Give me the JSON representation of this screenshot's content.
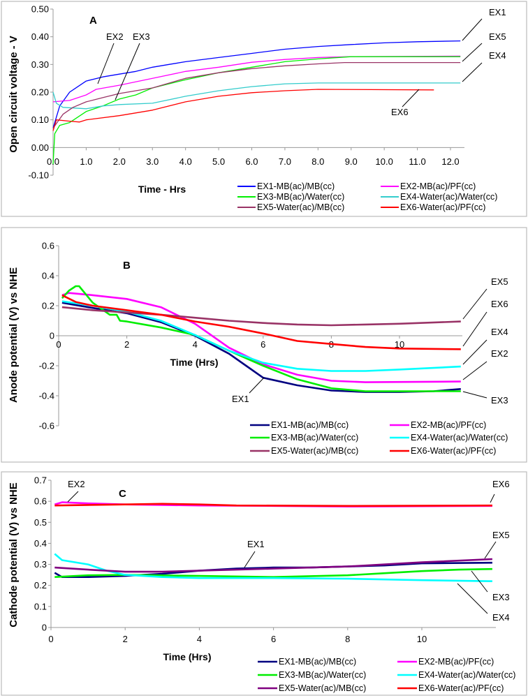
{
  "chart_data": [
    {
      "type": "line",
      "panel": "A",
      "title": "A",
      "xlabel": "Time - Hrs",
      "ylabel": "Open circuit voltage - V",
      "xlim": [
        0,
        12.4
      ],
      "ylim": [
        -0.1,
        0.5
      ],
      "xticks": [
        "0.0",
        "1.0",
        "2.0",
        "3.0",
        "4.0",
        "5.0",
        "6.0",
        "7.0",
        "8.0",
        "9.0",
        "10.0",
        "11.0",
        "12.0"
      ],
      "yticks": [
        "-0.10",
        "0.00",
        "0.10",
        "0.20",
        "0.30",
        "0.40",
        "0.50"
      ],
      "grid": false,
      "legend_placement": "bottom-right",
      "series": [
        {
          "name": "EX1-MB(ac)/MB(cc)",
          "color": "#0000ff",
          "points": [
            [
              0,
              0.07
            ],
            [
              0.2,
              0.15
            ],
            [
              0.5,
              0.2
            ],
            [
              1,
              0.24
            ],
            [
              1.5,
              0.255
            ],
            [
              2,
              0.265
            ],
            [
              2.5,
              0.275
            ],
            [
              3,
              0.29
            ],
            [
              3.5,
              0.3
            ],
            [
              4,
              0.31
            ],
            [
              5,
              0.325
            ],
            [
              6,
              0.34
            ],
            [
              7,
              0.355
            ],
            [
              8,
              0.365
            ],
            [
              9,
              0.372
            ],
            [
              10,
              0.378
            ],
            [
              11,
              0.382
            ],
            [
              12.3,
              0.385
            ]
          ]
        },
        {
          "name": "EX2-MB(ac)/PF(cc)",
          "color": "#ff00ff",
          "points": [
            [
              0,
              0.165
            ],
            [
              0.5,
              0.17
            ],
            [
              1,
              0.19
            ],
            [
              1.3,
              0.21
            ],
            [
              2,
              0.225
            ],
            [
              3,
              0.25
            ],
            [
              4,
              0.275
            ],
            [
              5,
              0.29
            ],
            [
              6,
              0.308
            ],
            [
              7,
              0.318
            ],
            [
              8,
              0.325
            ],
            [
              9,
              0.328
            ],
            [
              12.3,
              0.33
            ]
          ]
        },
        {
          "name": "EX3-MB(ac)/Water(cc)",
          "color": "#00ee00",
          "points": [
            [
              0,
              -0.06
            ],
            [
              0.05,
              0.05
            ],
            [
              0.2,
              0.08
            ],
            [
              0.5,
              0.09
            ],
            [
              1,
              0.13
            ],
            [
              1.5,
              0.15
            ],
            [
              2,
              0.175
            ],
            [
              2.5,
              0.19
            ],
            [
              3,
              0.215
            ],
            [
              4,
              0.245
            ],
            [
              5,
              0.27
            ],
            [
              6,
              0.29
            ],
            [
              7,
              0.31
            ],
            [
              8,
              0.32
            ],
            [
              9,
              0.328
            ],
            [
              12.3,
              0.328
            ]
          ]
        },
        {
          "name": "EX4-Water(ac)/Water(cc)",
          "color": "#33cccc",
          "points": [
            [
              0,
              0.2
            ],
            [
              0.1,
              0.16
            ],
            [
              0.3,
              0.145
            ],
            [
              1,
              0.14
            ],
            [
              1.5,
              0.15
            ],
            [
              2,
              0.155
            ],
            [
              3,
              0.16
            ],
            [
              4,
              0.185
            ],
            [
              5,
              0.205
            ],
            [
              6,
              0.22
            ],
            [
              7,
              0.23
            ],
            [
              8,
              0.233
            ],
            [
              12.3,
              0.233
            ]
          ]
        },
        {
          "name": "EX5-Water(ac)/MB(cc)",
          "color": "#993366",
          "points": [
            [
              0,
              0.07
            ],
            [
              0.3,
              0.12
            ],
            [
              0.6,
              0.145
            ],
            [
              1,
              0.165
            ],
            [
              1.5,
              0.18
            ],
            [
              2,
              0.195
            ],
            [
              3,
              0.215
            ],
            [
              4,
              0.25
            ],
            [
              5,
              0.27
            ],
            [
              6,
              0.285
            ],
            [
              7,
              0.295
            ],
            [
              8,
              0.302
            ],
            [
              8.8,
              0.307
            ],
            [
              12.3,
              0.307
            ]
          ]
        },
        {
          "name": "EX6-Water(ac)/PF(cc)",
          "color": "#ff0000",
          "points": [
            [
              0,
              0.06
            ],
            [
              0.1,
              0.1
            ],
            [
              0.5,
              0.095
            ],
            [
              0.8,
              0.092
            ],
            [
              1,
              0.1
            ],
            [
              2,
              0.115
            ],
            [
              3,
              0.135
            ],
            [
              4,
              0.165
            ],
            [
              5,
              0.185
            ],
            [
              6,
              0.198
            ],
            [
              7,
              0.205
            ],
            [
              8,
              0.21
            ],
            [
              11.5,
              0.208
            ]
          ]
        }
      ],
      "annotations": [
        "EX1",
        "EX5",
        "EX4",
        "EX6",
        "EX2",
        "EX3"
      ]
    },
    {
      "type": "line",
      "panel": "B",
      "title": "B",
      "xlabel": "Time (Hrs)",
      "ylabel": "Anode potential (V) vs NHE",
      "xlim": [
        0,
        11.8
      ],
      "ylim": [
        -0.6,
        0.6
      ],
      "xticks": [
        "0",
        "2",
        "4",
        "6",
        "8",
        "10"
      ],
      "yticks": [
        "-0.6",
        "-0.4",
        "-0.2",
        "0",
        "0.2",
        "0.4",
        "0.6"
      ],
      "grid": false,
      "legend_placement": "bottom-right",
      "series": [
        {
          "name": "EX1-MB(ac)/MB(cc)",
          "color": "#000080",
          "points": [
            [
              0.1,
              0.22
            ],
            [
              1,
              0.185
            ],
            [
              2,
              0.15
            ],
            [
              3,
              0.09
            ],
            [
              4,
              0
            ],
            [
              5,
              -0.12
            ],
            [
              5.5,
              -0.2
            ],
            [
              6,
              -0.28
            ],
            [
              7,
              -0.33
            ],
            [
              8,
              -0.365
            ],
            [
              9,
              -0.375
            ],
            [
              10,
              -0.375
            ],
            [
              11,
              -0.37
            ],
            [
              11.8,
              -0.355
            ]
          ]
        },
        {
          "name": "EX2-MB(ac)/PF(cc)",
          "color": "#ff00ff",
          "points": [
            [
              0.1,
              0.27
            ],
            [
              0.3,
              0.285
            ],
            [
              1,
              0.27
            ],
            [
              2,
              0.245
            ],
            [
              3,
              0.19
            ],
            [
              4,
              0.08
            ],
            [
              5,
              -0.08
            ],
            [
              6,
              -0.19
            ],
            [
              7,
              -0.26
            ],
            [
              8,
              -0.3
            ],
            [
              9,
              -0.31
            ],
            [
              11.8,
              -0.305
            ]
          ]
        },
        {
          "name": "EX3-MB(ac)/Water(cc)",
          "color": "#00ee00",
          "points": [
            [
              0.1,
              0.25
            ],
            [
              0.3,
              0.3
            ],
            [
              0.5,
              0.33
            ],
            [
              0.6,
              0.33
            ],
            [
              1,
              0.22
            ],
            [
              1.5,
              0.14
            ],
            [
              1.7,
              0.14
            ],
            [
              1.8,
              0.1
            ],
            [
              2,
              0.095
            ],
            [
              3,
              0.055
            ],
            [
              4,
              0.005
            ],
            [
              5,
              -0.1
            ],
            [
              6,
              -0.2
            ],
            [
              7,
              -0.29
            ],
            [
              8,
              -0.35
            ],
            [
              9,
              -0.37
            ],
            [
              11.8,
              -0.37
            ]
          ]
        },
        {
          "name": "EX4-Water(ac)/Water(cc)",
          "color": "#00ffff",
          "points": [
            [
              0.1,
              0.23
            ],
            [
              1,
              0.2
            ],
            [
              2,
              0.16
            ],
            [
              3,
              0.1
            ],
            [
              4,
              0.005
            ],
            [
              5,
              -0.1
            ],
            [
              6,
              -0.18
            ],
            [
              7,
              -0.22
            ],
            [
              8,
              -0.235
            ],
            [
              9,
              -0.235
            ],
            [
              10,
              -0.225
            ],
            [
              11.8,
              -0.205
            ]
          ]
        },
        {
          "name": "EX5-Water(ac)/MB(cc)",
          "color": "#993366",
          "points": [
            [
              0.1,
              0.19
            ],
            [
              1,
              0.17
            ],
            [
              2,
              0.155
            ],
            [
              3,
              0.14
            ],
            [
              4,
              0.12
            ],
            [
              5,
              0.1
            ],
            [
              6,
              0.085
            ],
            [
              7,
              0.075
            ],
            [
              8,
              0.07
            ],
            [
              9,
              0.075
            ],
            [
              10,
              0.08
            ],
            [
              11.8,
              0.095
            ]
          ]
        },
        {
          "name": "EX6-Water(ac)/PF(cc)",
          "color": "#ff0000",
          "points": [
            [
              0.1,
              0.27
            ],
            [
              0.5,
              0.225
            ],
            [
              1,
              0.2
            ],
            [
              2,
              0.17
            ],
            [
              3,
              0.14
            ],
            [
              4,
              0.095
            ],
            [
              5,
              0.06
            ],
            [
              6,
              0.015
            ],
            [
              7,
              -0.035
            ],
            [
              8,
              -0.055
            ],
            [
              9,
              -0.075
            ],
            [
              10,
              -0.085
            ],
            [
              11.8,
              -0.09
            ]
          ]
        }
      ],
      "annotations": [
        "EX5",
        "EX6",
        "EX4",
        "EX2",
        "EX3",
        "EX1"
      ]
    },
    {
      "type": "line",
      "panel": "C",
      "title": "C",
      "xlabel": "Time (Hrs)",
      "ylabel": "Cathode potential (V) vs NHE",
      "xlim": [
        0,
        11.9
      ],
      "ylim": [
        0,
        0.7
      ],
      "xticks": [
        "0",
        "2",
        "4",
        "6",
        "8",
        "10"
      ],
      "yticks": [
        "0",
        "0.1",
        "0.2",
        "0.3",
        "0.4",
        "0.5",
        "0.6",
        "0.7"
      ],
      "grid": false,
      "legend_placement": "bottom-right",
      "series": [
        {
          "name": "EX1-MB(ac)/MB(cc)",
          "color": "#000080",
          "points": [
            [
              0.1,
              0.26
            ],
            [
              0.3,
              0.24
            ],
            [
              1,
              0.24
            ],
            [
              2,
              0.245
            ],
            [
              3,
              0.255
            ],
            [
              4,
              0.27
            ],
            [
              5,
              0.28
            ],
            [
              6,
              0.285
            ],
            [
              7,
              0.285
            ],
            [
              8,
              0.29
            ],
            [
              9,
              0.295
            ],
            [
              10,
              0.305
            ],
            [
              11.9,
              0.308
            ]
          ]
        },
        {
          "name": "EX2-MB(ac)/PF(cc)",
          "color": "#ff00ff",
          "points": [
            [
              0.1,
              0.585
            ],
            [
              0.3,
              0.595
            ],
            [
              1,
              0.59
            ],
            [
              2,
              0.585
            ],
            [
              4,
              0.58
            ],
            [
              6,
              0.578
            ],
            [
              8,
              0.575
            ],
            [
              11.9,
              0.578
            ]
          ]
        },
        {
          "name": "EX3-MB(ac)/Water(cc)",
          "color": "#00ee00",
          "points": [
            [
              0.1,
              0.24
            ],
            [
              1,
              0.248
            ],
            [
              2,
              0.25
            ],
            [
              4,
              0.245
            ],
            [
              6,
              0.24
            ],
            [
              8,
              0.248
            ],
            [
              9,
              0.258
            ],
            [
              10,
              0.268
            ],
            [
              11,
              0.275
            ],
            [
              11.9,
              0.278
            ]
          ]
        },
        {
          "name": "EX4-Water(ac)/Water(cc)",
          "color": "#00ffff",
          "points": [
            [
              0.1,
              0.35
            ],
            [
              0.3,
              0.32
            ],
            [
              1,
              0.3
            ],
            [
              1.5,
              0.27
            ],
            [
              2,
              0.25
            ],
            [
              3,
              0.24
            ],
            [
              4,
              0.235
            ],
            [
              6,
              0.235
            ],
            [
              8,
              0.232
            ],
            [
              10,
              0.225
            ],
            [
              11.9,
              0.22
            ]
          ]
        },
        {
          "name": "EX5-Water(ac)/MB(cc)",
          "color": "#800080",
          "points": [
            [
              0.1,
              0.285
            ],
            [
              1,
              0.275
            ],
            [
              2,
              0.265
            ],
            [
              3,
              0.265
            ],
            [
              4,
              0.27
            ],
            [
              6,
              0.28
            ],
            [
              8,
              0.29
            ],
            [
              10,
              0.31
            ],
            [
              11.9,
              0.325
            ]
          ]
        },
        {
          "name": "EX6-Water(ac)/PF(cc)",
          "color": "#ff0000",
          "points": [
            [
              0.1,
              0.58
            ],
            [
              2,
              0.585
            ],
            [
              3,
              0.588
            ],
            [
              4,
              0.585
            ],
            [
              5,
              0.58
            ],
            [
              8,
              0.578
            ],
            [
              11.9,
              0.58
            ]
          ]
        }
      ],
      "annotations": [
        "EX2",
        "EX6",
        "EX1",
        "EX5",
        "EX3",
        "EX4"
      ]
    }
  ]
}
